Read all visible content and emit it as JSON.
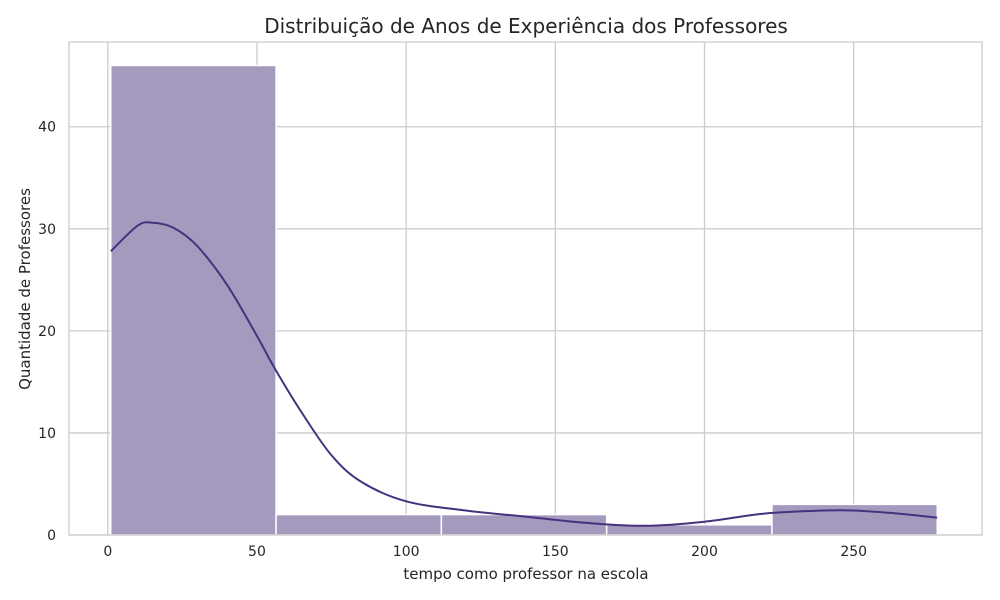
{
  "chart_data": {
    "type": "bar",
    "title": "Distribuição de Anos de Experiência dos Professores",
    "xlabel": "tempo como professor na escola",
    "ylabel": "Quantidade de Professores",
    "xlim": [
      -13,
      293
    ],
    "ylim": [
      0,
      48.3
    ],
    "xticks": [
      0,
      50,
      100,
      150,
      200,
      250
    ],
    "yticks": [
      0,
      10,
      20,
      30,
      40
    ],
    "grid": true,
    "bins": [
      {
        "x0": 1,
        "x1": 56.4,
        "count": 46
      },
      {
        "x0": 56.4,
        "x1": 111.8,
        "count": 2
      },
      {
        "x0": 111.8,
        "x1": 167.2,
        "count": 2
      },
      {
        "x0": 167.2,
        "x1": 222.6,
        "count": 1
      },
      {
        "x0": 222.6,
        "x1": 278,
        "count": 3
      }
    ],
    "kde": {
      "x": [
        1,
        10,
        15,
        22,
        30,
        40,
        50,
        56,
        65,
        75,
        85,
        100,
        120,
        140,
        160,
        180,
        200,
        220,
        240,
        250,
        265,
        278
      ],
      "y": [
        27.8,
        30.3,
        30.6,
        30.1,
        28.3,
        24.5,
        19.5,
        16.3,
        12.0,
        7.8,
        5.2,
        3.3,
        2.4,
        1.8,
        1.2,
        0.9,
        1.3,
        2.1,
        2.4,
        2.4,
        2.1,
        1.7
      ]
    },
    "colors": {
      "bar_fill": "#a39abd",
      "bar_stroke": "#ffffff",
      "kde_line": "#46327e",
      "grid": "#cccccc",
      "spine": "#cccccc",
      "text": "#262626"
    }
  }
}
